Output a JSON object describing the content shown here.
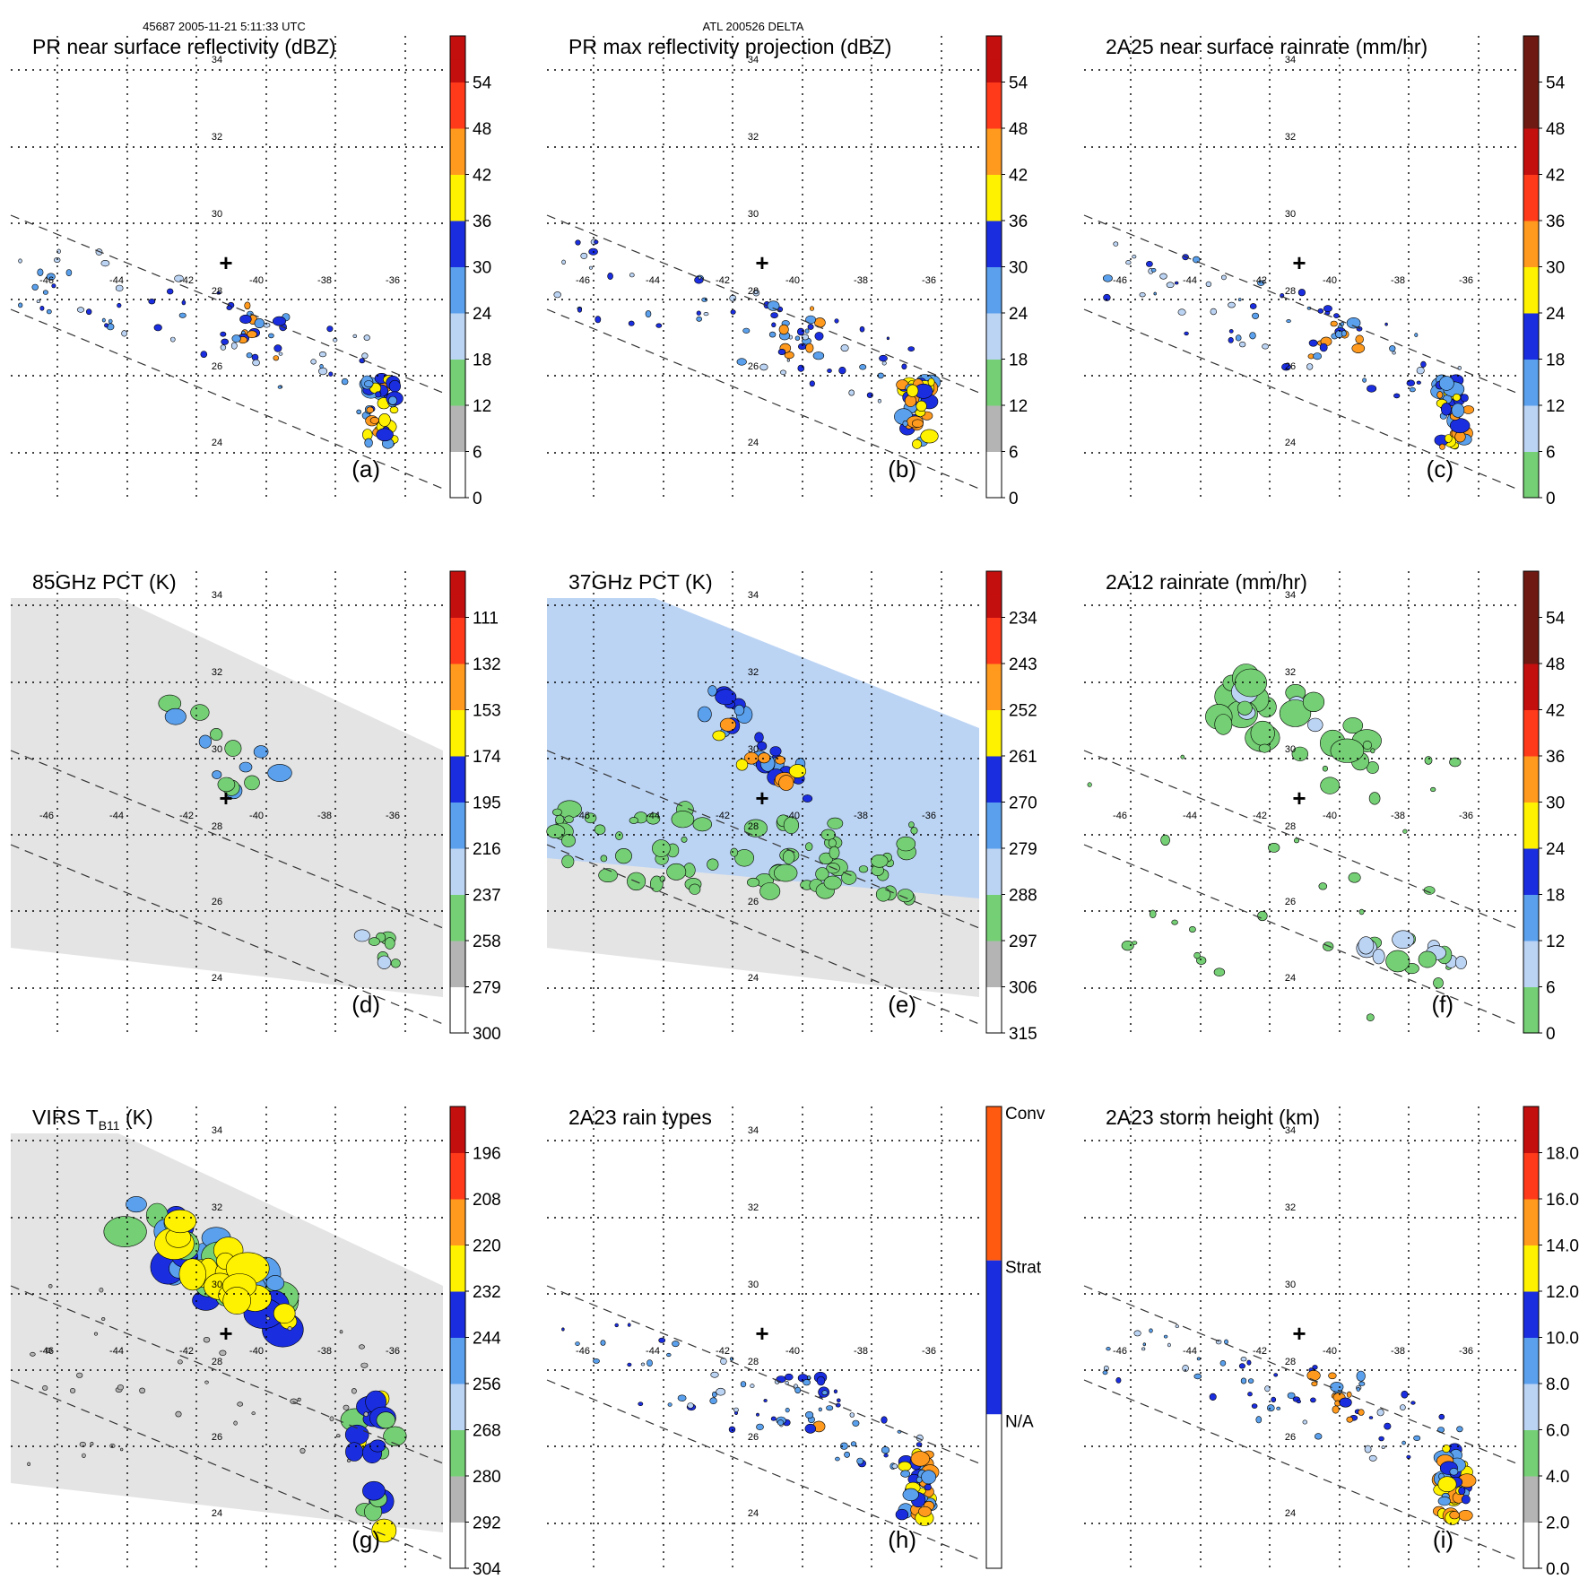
{
  "header": {
    "left": "45687 2005-11-21 5:11:33 UTC",
    "center": "ATL 200526 DELTA"
  },
  "colors": {
    "white": "#ffffff",
    "gray": "#b4b4b4",
    "green": "#75d075",
    "light_blue": "#bcd4f4",
    "mid_blue": "#5aa0ec",
    "blue": "#1a2ee0",
    "yellow": "#fff200",
    "orange": "#ff9a1e",
    "red": "#ff3a1a",
    "dark_red": "#c40f0f",
    "maroon": "#6e1a12",
    "gray_field": "#e4e4e4",
    "conv_orange": "#ff5a10",
    "strat_blue": "#1a2ee0"
  },
  "lon_labels": [
    "-46",
    "-44",
    "-42",
    "-40",
    "-38",
    "-36"
  ],
  "lat_labels": [
    "34",
    "32",
    "30",
    "28",
    "26",
    "24"
  ],
  "panels": [
    {
      "key": "a",
      "title": "PR near surface reflectivity (dBZ)",
      "title_sub": "",
      "title_post": "",
      "letter": "(a)",
      "field": "pr",
      "colorbar": {
        "type": "scale",
        "scheme": "refl",
        "ticks": [
          "0",
          "6",
          "12",
          "18",
          "24",
          "30",
          "36",
          "42",
          "48",
          "54"
        ]
      }
    },
    {
      "key": "b",
      "title": "PR max reflectivity projection (dBZ)",
      "title_sub": "",
      "title_post": "",
      "letter": "(b)",
      "field": "pr",
      "colorbar": {
        "type": "scale",
        "scheme": "refl",
        "ticks": [
          "0",
          "6",
          "12",
          "18",
          "24",
          "30",
          "36",
          "42",
          "48",
          "54"
        ]
      }
    },
    {
      "key": "c",
      "title": "2A25 near surface rainrate (mm/hr)",
      "title_sub": "",
      "title_post": "",
      "letter": "(c)",
      "field": "pr",
      "colorbar": {
        "type": "scale",
        "scheme": "rain",
        "ticks": [
          "0",
          "6",
          "12",
          "18",
          "24",
          "30",
          "36",
          "42",
          "48",
          "54"
        ]
      }
    },
    {
      "key": "d",
      "title": "85GHz PCT (K)",
      "title_sub": "",
      "title_post": "",
      "letter": "(d)",
      "field": "tmi",
      "colorbar": {
        "type": "scale",
        "scheme": "tb",
        "ticks": [
          "300",
          "279",
          "258",
          "237",
          "216",
          "195",
          "174",
          "153",
          "132",
          "111"
        ]
      }
    },
    {
      "key": "e",
      "title": "37GHz PCT (K)",
      "title_sub": "",
      "title_post": "",
      "letter": "(e)",
      "field": "tmi",
      "colorbar": {
        "type": "scale",
        "scheme": "tb",
        "ticks": [
          "315",
          "306",
          "297",
          "288",
          "279",
          "270",
          "261",
          "252",
          "243",
          "234"
        ]
      }
    },
    {
      "key": "f",
      "title": "2A12 rainrate (mm/hr)",
      "title_sub": "",
      "title_post": "",
      "letter": "(f)",
      "field": "tmi-rain",
      "colorbar": {
        "type": "scale",
        "scheme": "rain",
        "ticks": [
          "0",
          "6",
          "12",
          "18",
          "24",
          "30",
          "36",
          "42",
          "48",
          "54"
        ]
      }
    },
    {
      "key": "g",
      "title": "VIRS T",
      "title_sub": "B11",
      "title_post": " (K)",
      "letter": "(g)",
      "field": "virs",
      "colorbar": {
        "type": "scale",
        "scheme": "tb",
        "ticks": [
          "304",
          "292",
          "280",
          "268",
          "256",
          "244",
          "232",
          "220",
          "208",
          "196"
        ]
      }
    },
    {
      "key": "h",
      "title": "2A23 rain types",
      "title_sub": "",
      "title_post": "",
      "letter": "(h)",
      "field": "pr",
      "colorbar": {
        "type": "category",
        "labels": [
          "Conv",
          "Strat",
          "N/A"
        ]
      }
    },
    {
      "key": "i",
      "title": "2A23 storm height (km)",
      "title_sub": "",
      "title_post": "",
      "letter": "(i)",
      "field": "pr",
      "colorbar": {
        "type": "scale",
        "scheme": "height",
        "ticks": [
          "0.0",
          "2.0",
          "4.0",
          "6.0",
          "8.0",
          "10.0",
          "12.0",
          "14.0",
          "16.0",
          "18.0"
        ]
      }
    }
  ]
}
